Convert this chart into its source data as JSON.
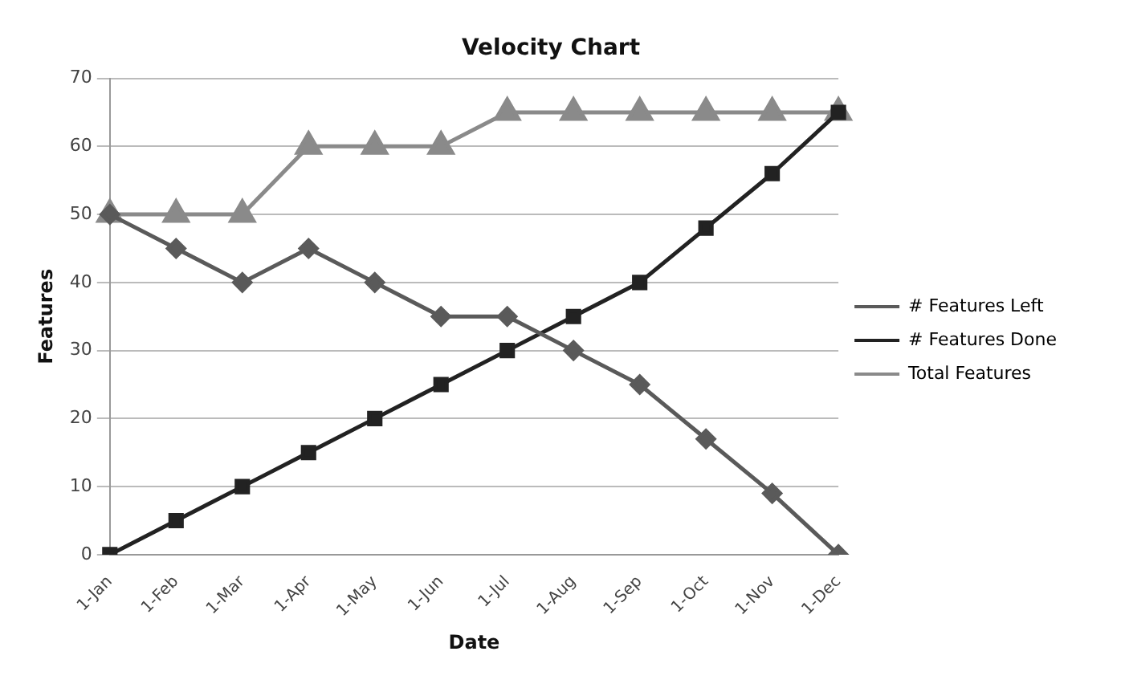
{
  "chart_data": {
    "type": "line",
    "title": "Velocity Chart",
    "xlabel": "Date",
    "ylabel": "Features",
    "categories": [
      "1-Jan",
      "1-Feb",
      "1-Mar",
      "1-Apr",
      "1-May",
      "1-Jun",
      "1-Jul",
      "1-Aug",
      "1-Sep",
      "1-Oct",
      "1-Nov",
      "1-Dec"
    ],
    "series": [
      {
        "name": "# Features Left",
        "color": "#5a5a5a",
        "marker": "diamond",
        "values": [
          50,
          45,
          40,
          45,
          40,
          35,
          35,
          30,
          25,
          17,
          9,
          0
        ]
      },
      {
        "name": "# Features Done",
        "color": "#222222",
        "marker": "square",
        "values": [
          0,
          5,
          10,
          15,
          20,
          25,
          30,
          35,
          40,
          48,
          56,
          65
        ]
      },
      {
        "name": "Total Features",
        "color": "#8a8a8a",
        "marker": "triangle",
        "values": [
          50,
          50,
          50,
          60,
          60,
          60,
          65,
          65,
          65,
          65,
          65,
          65
        ]
      }
    ],
    "ylim": [
      0,
      70
    ],
    "yticks": [
      0,
      10,
      20,
      30,
      40,
      50,
      60,
      70
    ],
    "grid": "y",
    "legend": "right",
    "line_style": "solid"
  }
}
